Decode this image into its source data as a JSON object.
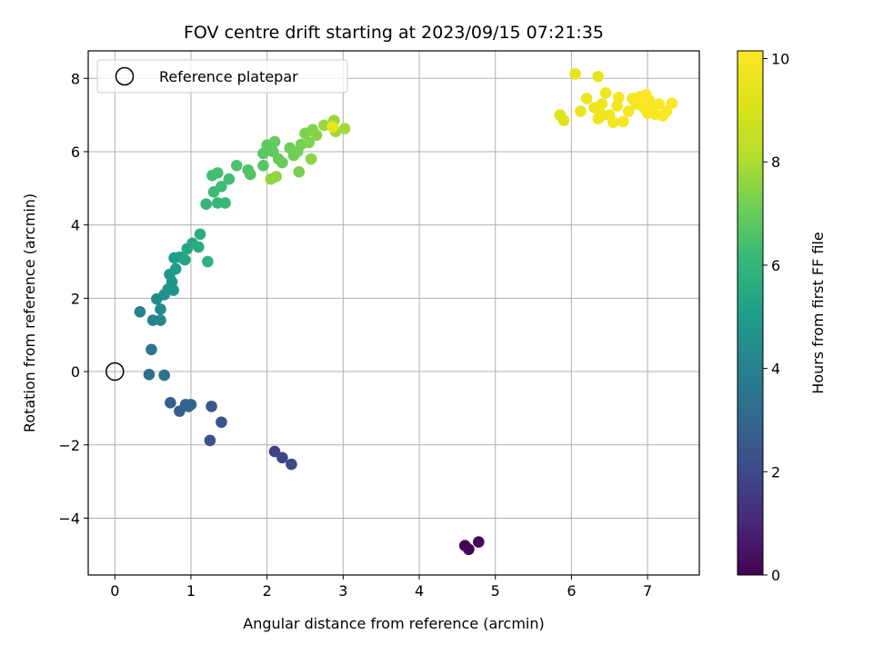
{
  "chart_data": {
    "type": "scatter",
    "title": "FOV centre drift starting at 2023/09/15 07:21:35",
    "xlabel": "Angular distance from reference (arcmin)",
    "ylabel": "Rotation from reference (arcmin)",
    "xlim": [
      -0.35,
      7.68
    ],
    "ylim": [
      -5.55,
      8.75
    ],
    "xticks": [
      0,
      1,
      2,
      3,
      4,
      5,
      6,
      7
    ],
    "yticks": [
      -4,
      -2,
      0,
      2,
      4,
      6,
      8
    ],
    "grid": true,
    "colormap": "viridis",
    "colorbar": {
      "label": "Hours from first FF file",
      "range": [
        0,
        10.15
      ],
      "ticks": [
        0,
        2,
        4,
        6,
        8,
        10
      ]
    },
    "legend": {
      "placement": "top-left",
      "entries": [
        {
          "label": "Reference platepar",
          "marker": "open-circle"
        }
      ]
    },
    "reference_point": {
      "x": 0,
      "y": 0
    },
    "points": [
      {
        "x": 4.6,
        "y": -4.75,
        "t": 0.0
      },
      {
        "x": 4.65,
        "y": -4.85,
        "t": 0.08
      },
      {
        "x": 4.78,
        "y": -4.65,
        "t": 0.15
      },
      {
        "x": 2.1,
        "y": -2.18,
        "t": 1.8
      },
      {
        "x": 2.2,
        "y": -2.35,
        "t": 1.9
      },
      {
        "x": 2.32,
        "y": -2.53,
        "t": 2.0
      },
      {
        "x": 1.25,
        "y": -1.88,
        "t": 2.3
      },
      {
        "x": 1.4,
        "y": -1.38,
        "t": 2.4
      },
      {
        "x": 1.27,
        "y": -0.95,
        "t": 2.5
      },
      {
        "x": 0.73,
        "y": -0.85,
        "t": 2.7
      },
      {
        "x": 0.85,
        "y": -1.08,
        "t": 2.75
      },
      {
        "x": 0.93,
        "y": -0.9,
        "t": 2.8
      },
      {
        "x": 0.97,
        "y": -0.95,
        "t": 2.85
      },
      {
        "x": 1.0,
        "y": -0.9,
        "t": 2.9
      },
      {
        "x": 0.45,
        "y": -0.08,
        "t": 3.4
      },
      {
        "x": 0.65,
        "y": -0.1,
        "t": 3.5
      },
      {
        "x": 0.48,
        "y": 0.6,
        "t": 3.6
      },
      {
        "x": 0.33,
        "y": 1.63,
        "t": 4.0
      },
      {
        "x": 0.5,
        "y": 1.4,
        "t": 4.1
      },
      {
        "x": 0.6,
        "y": 1.4,
        "t": 4.2
      },
      {
        "x": 0.6,
        "y": 1.7,
        "t": 4.3
      },
      {
        "x": 0.55,
        "y": 1.98,
        "t": 4.4
      },
      {
        "x": 0.65,
        "y": 2.1,
        "t": 4.5
      },
      {
        "x": 0.7,
        "y": 2.25,
        "t": 4.6
      },
      {
        "x": 0.77,
        "y": 2.22,
        "t": 4.7
      },
      {
        "x": 0.75,
        "y": 2.45,
        "t": 4.8
      },
      {
        "x": 0.72,
        "y": 2.65,
        "t": 4.9
      },
      {
        "x": 0.8,
        "y": 2.8,
        "t": 5.0
      },
      {
        "x": 0.78,
        "y": 3.1,
        "t": 5.1
      },
      {
        "x": 0.85,
        "y": 3.12,
        "t": 5.2
      },
      {
        "x": 0.92,
        "y": 3.05,
        "t": 5.3
      },
      {
        "x": 0.95,
        "y": 3.35,
        "t": 5.4
      },
      {
        "x": 1.02,
        "y": 3.5,
        "t": 5.5
      },
      {
        "x": 1.1,
        "y": 3.4,
        "t": 5.6
      },
      {
        "x": 1.12,
        "y": 3.75,
        "t": 5.7
      },
      {
        "x": 1.22,
        "y": 3.0,
        "t": 5.8
      },
      {
        "x": 1.2,
        "y": 4.57,
        "t": 6.0
      },
      {
        "x": 1.35,
        "y": 4.6,
        "t": 6.1
      },
      {
        "x": 1.45,
        "y": 4.6,
        "t": 6.15
      },
      {
        "x": 1.3,
        "y": 4.9,
        "t": 6.2
      },
      {
        "x": 1.4,
        "y": 5.05,
        "t": 6.25
      },
      {
        "x": 1.5,
        "y": 5.25,
        "t": 6.3
      },
      {
        "x": 1.28,
        "y": 5.35,
        "t": 6.35
      },
      {
        "x": 1.35,
        "y": 5.42,
        "t": 6.4
      },
      {
        "x": 1.6,
        "y": 5.62,
        "t": 6.55
      },
      {
        "x": 1.75,
        "y": 5.5,
        "t": 6.6
      },
      {
        "x": 1.78,
        "y": 5.38,
        "t": 6.65
      },
      {
        "x": 1.95,
        "y": 5.62,
        "t": 6.7
      },
      {
        "x": 1.95,
        "y": 5.95,
        "t": 6.75
      },
      {
        "x": 2.0,
        "y": 6.18,
        "t": 6.8
      },
      {
        "x": 2.08,
        "y": 6.0,
        "t": 6.85
      },
      {
        "x": 2.1,
        "y": 6.27,
        "t": 6.9
      },
      {
        "x": 2.15,
        "y": 5.8,
        "t": 6.95
      },
      {
        "x": 2.2,
        "y": 5.7,
        "t": 7.0
      },
      {
        "x": 2.3,
        "y": 6.1,
        "t": 7.05
      },
      {
        "x": 2.35,
        "y": 5.9,
        "t": 7.1
      },
      {
        "x": 2.4,
        "y": 6.0,
        "t": 7.15
      },
      {
        "x": 2.45,
        "y": 6.2,
        "t": 7.2
      },
      {
        "x": 2.42,
        "y": 5.45,
        "t": 7.25
      },
      {
        "x": 2.5,
        "y": 6.5,
        "t": 7.3
      },
      {
        "x": 2.55,
        "y": 6.25,
        "t": 7.35
      },
      {
        "x": 2.6,
        "y": 6.6,
        "t": 7.4
      },
      {
        "x": 2.65,
        "y": 6.45,
        "t": 7.45
      },
      {
        "x": 2.58,
        "y": 5.8,
        "t": 7.5
      },
      {
        "x": 2.05,
        "y": 5.25,
        "t": 7.55
      },
      {
        "x": 2.12,
        "y": 5.32,
        "t": 7.6
      },
      {
        "x": 2.75,
        "y": 6.72,
        "t": 7.7
      },
      {
        "x": 2.88,
        "y": 6.85,
        "t": 7.75
      },
      {
        "x": 2.9,
        "y": 6.55,
        "t": 7.8
      },
      {
        "x": 3.02,
        "y": 6.63,
        "t": 7.85
      },
      {
        "x": 2.86,
        "y": 6.68,
        "t": 9.5
      },
      {
        "x": 5.85,
        "y": 7.0,
        "t": 9.2
      },
      {
        "x": 5.9,
        "y": 6.85,
        "t": 9.25
      },
      {
        "x": 6.05,
        "y": 8.12,
        "t": 9.4
      },
      {
        "x": 6.35,
        "y": 8.05,
        "t": 9.45
      },
      {
        "x": 6.12,
        "y": 7.1,
        "t": 9.55
      },
      {
        "x": 6.2,
        "y": 7.45,
        "t": 9.6
      },
      {
        "x": 6.3,
        "y": 7.2,
        "t": 9.65
      },
      {
        "x": 6.35,
        "y": 6.9,
        "t": 9.7
      },
      {
        "x": 6.4,
        "y": 7.3,
        "t": 9.72
      },
      {
        "x": 6.45,
        "y": 7.6,
        "t": 9.75
      },
      {
        "x": 6.5,
        "y": 7.0,
        "t": 9.78
      },
      {
        "x": 6.55,
        "y": 6.8,
        "t": 9.8
      },
      {
        "x": 6.6,
        "y": 7.25,
        "t": 9.83
      },
      {
        "x": 6.62,
        "y": 7.48,
        "t": 9.85
      },
      {
        "x": 6.68,
        "y": 6.82,
        "t": 9.87
      },
      {
        "x": 6.75,
        "y": 7.1,
        "t": 9.9
      },
      {
        "x": 6.8,
        "y": 7.45,
        "t": 9.92
      },
      {
        "x": 6.85,
        "y": 7.3,
        "t": 9.94
      },
      {
        "x": 6.9,
        "y": 7.5,
        "t": 9.96
      },
      {
        "x": 6.95,
        "y": 7.2,
        "t": 9.97
      },
      {
        "x": 7.0,
        "y": 7.05,
        "t": 9.98
      },
      {
        "x": 7.02,
        "y": 7.4,
        "t": 9.99
      },
      {
        "x": 7.05,
        "y": 7.2,
        "t": 10.0
      },
      {
        "x": 7.1,
        "y": 7.02,
        "t": 10.02
      },
      {
        "x": 7.15,
        "y": 7.3,
        "t": 10.04
      },
      {
        "x": 7.2,
        "y": 6.98,
        "t": 10.06
      },
      {
        "x": 7.25,
        "y": 7.1,
        "t": 10.08
      },
      {
        "x": 7.32,
        "y": 7.32,
        "t": 10.1
      },
      {
        "x": 6.98,
        "y": 7.55,
        "t": 10.12
      },
      {
        "x": 6.4,
        "y": 7.0,
        "t": 9.68
      }
    ]
  }
}
